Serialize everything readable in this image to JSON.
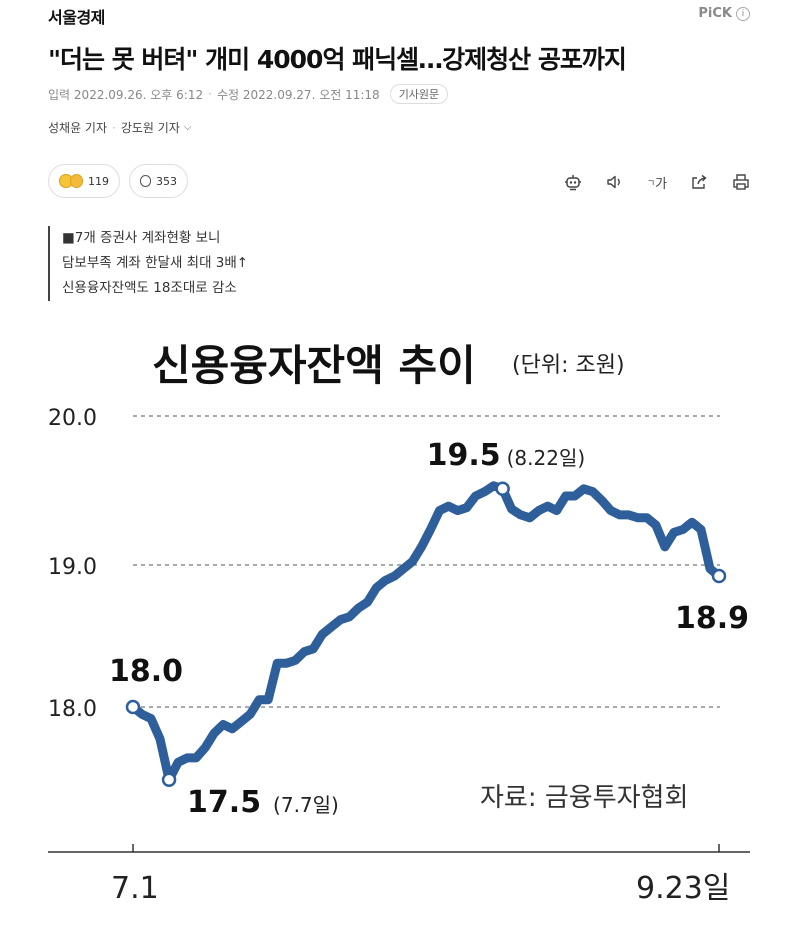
{
  "press": {
    "name": "서울경제",
    "pick_label": "PiCK",
    "info_label": "i"
  },
  "article": {
    "headline": "\"더는 못 버텨\" 개미 4000억 패닉셀…강제청산 공포까지",
    "input_label": "입력",
    "input_time": "2022.09.26. 오후 6:12",
    "modified_label": "수정",
    "modified_time": "2022.09.27. 오전 11:18",
    "original_button": "기사원문",
    "reporter1": "성채윤 기자",
    "reporter2": "강도원 기자",
    "reaction_count": "119",
    "comment_count": "353",
    "font_size_label": "가",
    "summary": [
      "■7개 증권사 계좌현황 보니",
      "담보부족 계좌 한달새 최대 3배↑",
      "신용융자잔액도 18조대로 감소"
    ]
  },
  "icons": {
    "reaction": "reaction-emoji-icon",
    "comment": "comment-bubble-icon",
    "summary_bot": "summary-bot-icon",
    "audio": "speaker-icon",
    "font_size": "font-size-icon",
    "share": "share-icon",
    "print": "print-icon"
  },
  "chart_data": {
    "type": "line",
    "title": "신용융자잔액 추이",
    "unit": "(단위: 조원)",
    "source": "자료: 금융투자협회",
    "yticks": [
      "20.0",
      "19.0",
      "18.0"
    ],
    "ylim": [
      17.0,
      20.0
    ],
    "x_start_label": "7.1",
    "x_end_label": "9.23일",
    "color": "#2e5f9a",
    "values": [
      18.0,
      17.95,
      17.92,
      17.78,
      17.5,
      17.62,
      17.65,
      17.65,
      17.72,
      17.82,
      17.88,
      17.85,
      17.9,
      17.95,
      18.05,
      18.05,
      18.3,
      18.3,
      18.32,
      18.38,
      18.4,
      18.5,
      18.55,
      18.6,
      18.62,
      18.68,
      18.72,
      18.82,
      18.87,
      18.9,
      18.95,
      19.0,
      19.1,
      19.22,
      19.35,
      19.38,
      19.35,
      19.37,
      19.45,
      19.48,
      19.52,
      19.5,
      19.36,
      19.32,
      19.3,
      19.35,
      19.38,
      19.35,
      19.45,
      19.45,
      19.5,
      19.48,
      19.42,
      19.35,
      19.32,
      19.32,
      19.3,
      19.3,
      19.25,
      19.1,
      19.2,
      19.22,
      19.27,
      19.22,
      18.95,
      18.9
    ],
    "annotations": [
      {
        "index": 0,
        "value_label": "18.0",
        "date_label": ""
      },
      {
        "index": 4,
        "value_label": "17.5",
        "date_label": "(7.7일)"
      },
      {
        "index": 41,
        "value_label": "19.5",
        "date_label": "(8.22일)"
      },
      {
        "index": 65,
        "value_label": "18.9",
        "date_label": ""
      }
    ]
  }
}
